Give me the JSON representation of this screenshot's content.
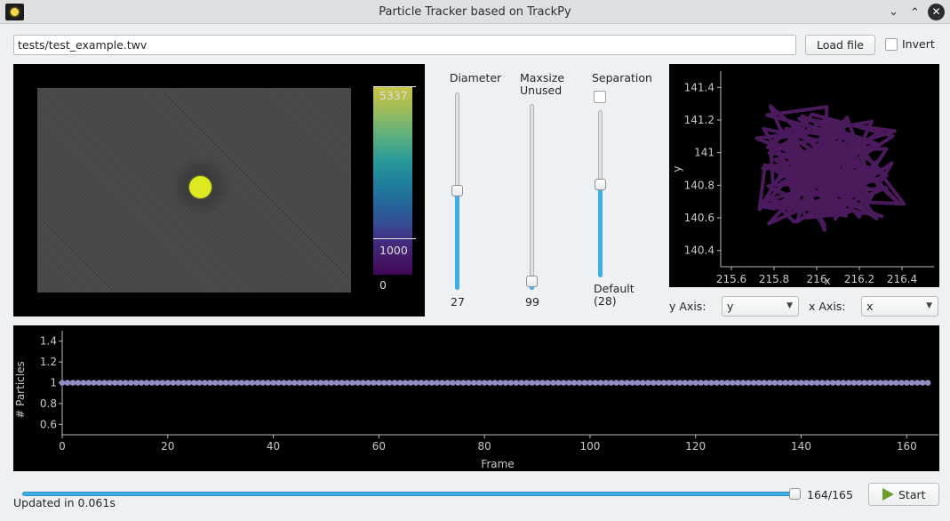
{
  "window": {
    "title": "Particle Tracker based on TrackPy",
    "icons": [
      "app-icon",
      "chevron-down-icon",
      "chevron-up-icon",
      "close-icon"
    ]
  },
  "file": {
    "path": "tests/test_example.twv",
    "load_label": "Load file",
    "invert_label": "Invert",
    "invert_checked": false
  },
  "image": {
    "colorbar_max": "5337",
    "colorbar_level": "1000",
    "colorbar_min": "0",
    "colormap": "viridis"
  },
  "sliders": {
    "diameter": {
      "title": "Diameter",
      "value": "27"
    },
    "maxsize": {
      "title": "Maxsize\nUnused",
      "value": "99"
    },
    "separation": {
      "title": "Separation",
      "checked": false,
      "value": "Default\n(28)"
    }
  },
  "axes": {
    "y_label": "y Axis:",
    "y_value": "y",
    "x_label": "x Axis:",
    "x_value": "x"
  },
  "status": {
    "text": "Updated in 0.061s",
    "frame": "164/165",
    "frame_fraction": 0.994,
    "start_label": "Start"
  },
  "chart_data": [
    {
      "type": "line",
      "xlabel": "x",
      "ylabel": "y",
      "xlim": [
        215.55,
        216.55
      ],
      "ylim": [
        140.3,
        141.5
      ],
      "xticks": [
        "215.6",
        "215.8",
        "216",
        "216.2",
        "216.4"
      ],
      "yticks": [
        "141.4",
        "141.2",
        "141",
        "140.8",
        "140.6",
        "140.4"
      ],
      "color": "#4a1a5c"
    },
    {
      "type": "scatter",
      "xlabel": "Frame",
      "ylabel": "# Particles",
      "xlim": [
        0,
        165
      ],
      "ylim": [
        0.5,
        1.5
      ],
      "xticks": [
        "0",
        "20",
        "40",
        "60",
        "80",
        "100",
        "120",
        "140",
        "160"
      ],
      "yticks": [
        "1.4",
        "1.2",
        "1",
        "0.8",
        "0.6"
      ],
      "frames": 165,
      "value": 1,
      "color": "#8f8fc4"
    }
  ]
}
